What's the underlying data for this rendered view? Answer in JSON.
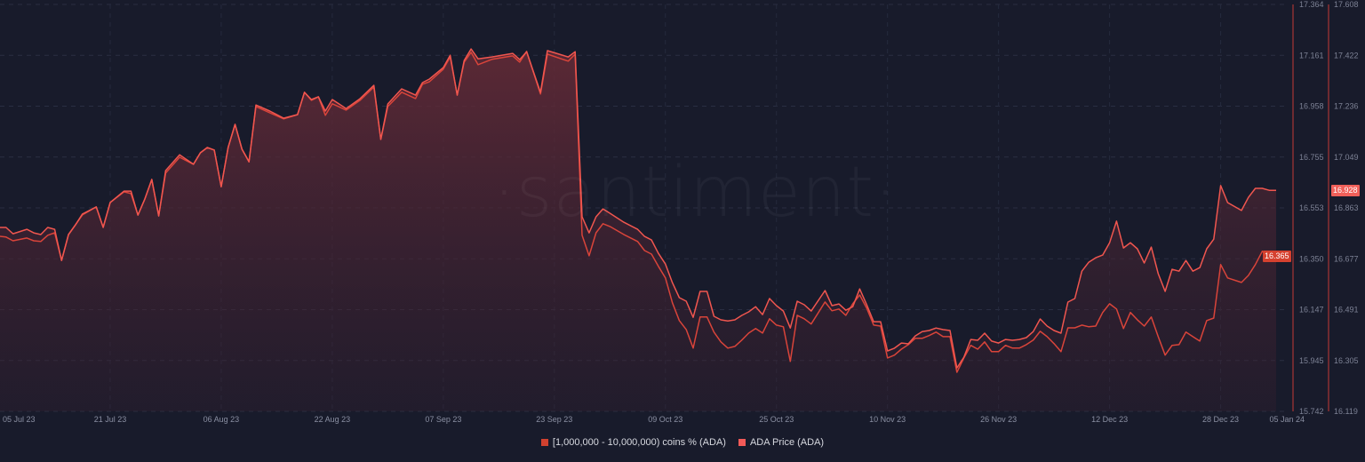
{
  "watermark": "·santiment·",
  "legend": [
    {
      "label": "[1,000,000 - 10,000,000) coins % (ADA)",
      "color": "#d0412f"
    },
    {
      "label": "ADA Price (ADA)",
      "color": "#f25a58"
    }
  ],
  "badges": {
    "coins_last": "16.365",
    "price_last": "16.928"
  },
  "chart_data": {
    "type": "line",
    "title": "",
    "x_tick_labels": [
      "05 Jul 23",
      "21 Jul 23",
      "06 Aug 23",
      "22 Aug 23",
      "07 Sep 23",
      "23 Sep 23",
      "09 Oct 23",
      "25 Oct 23",
      "10 Nov 23",
      "26 Nov 23",
      "12 Dec 23",
      "28 Dec 23",
      "05 Jan 24"
    ],
    "left_axis": {
      "ylim": [
        15.742,
        17.364
      ],
      "tick_labels": [
        "17.364",
        "17.161",
        "16.958",
        "16.755",
        "16.553",
        "16.350",
        "16.147",
        "15.945",
        "15.742"
      ]
    },
    "right_axis": {
      "ylim": [
        16.119,
        17.608
      ],
      "tick_labels": [
        "17.608",
        "17.422",
        "17.236",
        "17.049",
        "16.863",
        "16.677",
        "16.491",
        "16.305",
        "16.119"
      ]
    },
    "grid": true,
    "legend_position": "bottom",
    "x": [
      "2023-07-05",
      "2023-07-06",
      "2023-07-07",
      "2023-07-09",
      "2023-07-10",
      "2023-07-11",
      "2023-07-12",
      "2023-07-13",
      "2023-07-14",
      "2023-07-15",
      "2023-07-16",
      "2023-07-17",
      "2023-07-19",
      "2023-07-20",
      "2023-07-21",
      "2023-07-23",
      "2023-07-24",
      "2023-07-25",
      "2023-07-26",
      "2023-07-27",
      "2023-07-28",
      "2023-07-29",
      "2023-07-31",
      "2023-08-02",
      "2023-08-03",
      "2023-08-04",
      "2023-08-05",
      "2023-08-06",
      "2023-08-07",
      "2023-08-08",
      "2023-08-09",
      "2023-08-10",
      "2023-08-11",
      "2023-08-13",
      "2023-08-15",
      "2023-08-17",
      "2023-08-18",
      "2023-08-19",
      "2023-08-20",
      "2023-08-21",
      "2023-08-22",
      "2023-08-24",
      "2023-08-26",
      "2023-08-28",
      "2023-08-29",
      "2023-08-30",
      "2023-09-01",
      "2023-09-03",
      "2023-09-04",
      "2023-09-05",
      "2023-09-07",
      "2023-09-08",
      "2023-09-09",
      "2023-09-10",
      "2023-09-11",
      "2023-09-12",
      "2023-09-14",
      "2023-09-17",
      "2023-09-18",
      "2023-09-19",
      "2023-09-21",
      "2023-09-22",
      "2023-09-25",
      "2023-09-26",
      "2023-09-27",
      "2023-09-28",
      "2023-09-29",
      "2023-09-30",
      "2023-10-01",
      "2023-10-03",
      "2023-10-05",
      "2023-10-06",
      "2023-10-07",
      "2023-10-08",
      "2023-10-09",
      "2023-10-10",
      "2023-10-11",
      "2023-10-12",
      "2023-10-13",
      "2023-10-14",
      "2023-10-15",
      "2023-10-16",
      "2023-10-17",
      "2023-10-18",
      "2023-10-19",
      "2023-10-20",
      "2023-10-21",
      "2023-10-22",
      "2023-10-23",
      "2023-10-24",
      "2023-10-25",
      "2023-10-26",
      "2023-10-27",
      "2023-10-28",
      "2023-10-29",
      "2023-10-30",
      "2023-11-01",
      "2023-11-02",
      "2023-11-03",
      "2023-11-04",
      "2023-11-05",
      "2023-11-06",
      "2023-11-07",
      "2023-11-08",
      "2023-11-09",
      "2023-11-10",
      "2023-11-11",
      "2023-11-12",
      "2023-11-13",
      "2023-11-14",
      "2023-11-15",
      "2023-11-16",
      "2023-11-17",
      "2023-11-18",
      "2023-11-19",
      "2023-11-20",
      "2023-11-21",
      "2023-11-22",
      "2023-11-23",
      "2023-11-24",
      "2023-11-25",
      "2023-11-26",
      "2023-11-27",
      "2023-11-28",
      "2023-11-29",
      "2023-11-30",
      "2023-12-01",
      "2023-12-02",
      "2023-12-03",
      "2023-12-04",
      "2023-12-05",
      "2023-12-06",
      "2023-12-07",
      "2023-12-08",
      "2023-12-09",
      "2023-12-10",
      "2023-12-11",
      "2023-12-12",
      "2023-12-13",
      "2023-12-14",
      "2023-12-15",
      "2023-12-16",
      "2023-12-17",
      "2023-12-18",
      "2023-12-19",
      "2023-12-20",
      "2023-12-21",
      "2023-12-22",
      "2023-12-23",
      "2023-12-24",
      "2023-12-25",
      "2023-12-26",
      "2023-12-27",
      "2023-12-28",
      "2023-12-29",
      "2023-12-31",
      "2024-01-01",
      "2024-01-02",
      "2024-01-03",
      "2024-01-04",
      "2024-01-05"
    ],
    "series": [
      {
        "name": "[1,000,000 - 10,000,000) coins % (ADA)",
        "axis": "left",
        "color": "#d9443a",
        "values": [
          16.44,
          16.437,
          16.422,
          16.433,
          16.422,
          16.419,
          16.444,
          16.454,
          16.344,
          16.447,
          16.486,
          16.525,
          16.557,
          16.476,
          16.575,
          16.617,
          16.61,
          16.525,
          16.589,
          16.667,
          16.522,
          16.692,
          16.755,
          16.727,
          16.773,
          16.794,
          16.784,
          16.638,
          16.794,
          16.886,
          16.787,
          16.738,
          16.957,
          16.932,
          16.908,
          16.925,
          17.014,
          16.982,
          16.996,
          16.922,
          16.968,
          16.943,
          16.982,
          17.035,
          16.826,
          16.957,
          17.014,
          16.989,
          17.046,
          17.056,
          17.106,
          17.155,
          17.003,
          17.134,
          17.173,
          17.124,
          17.145,
          17.159,
          17.134,
          17.177,
          17.007,
          17.166,
          17.138,
          17.166,
          16.444,
          16.362,
          16.454,
          16.49,
          16.479,
          16.447,
          16.419,
          16.383,
          16.369,
          16.32,
          16.274,
          16.175,
          16.104,
          16.068,
          15.994,
          16.118,
          16.118,
          16.058,
          16.019,
          15.994,
          16.001,
          16.026,
          16.054,
          16.072,
          16.054,
          16.111,
          16.086,
          16.079,
          15.941,
          16.125,
          16.111,
          16.09,
          16.178,
          16.143,
          16.15,
          16.125,
          16.171,
          16.206,
          16.153,
          16.086,
          16.082,
          15.955,
          15.966,
          15.99,
          16.008,
          16.033,
          16.033,
          16.044,
          16.058,
          16.04,
          16.04,
          15.898,
          15.955,
          16.005,
          15.99,
          16.019,
          15.98,
          15.98,
          16.005,
          15.994,
          15.994,
          16.008,
          16.026,
          16.061,
          16.04,
          16.012,
          15.98,
          16.075,
          16.075,
          16.086,
          16.079,
          16.082,
          16.136,
          16.171,
          16.15,
          16.072,
          16.136,
          16.107,
          16.082,
          16.118,
          16.04,
          15.966,
          16.005,
          16.008,
          16.058,
          16.04,
          16.022,
          16.104,
          16.114,
          16.327,
          16.274,
          16.256,
          16.284,
          16.327,
          16.38,
          16.359,
          16.365
        ]
      },
      {
        "name": "ADA Price (ADA)",
        "axis": "right",
        "color": "#f0564f",
        "values": [
          16.792,
          16.792,
          16.769,
          16.785,
          16.772,
          16.766,
          16.792,
          16.785,
          16.671,
          16.766,
          16.801,
          16.841,
          16.867,
          16.792,
          16.883,
          16.925,
          16.925,
          16.837,
          16.896,
          16.967,
          16.834,
          17.0,
          17.058,
          17.023,
          17.065,
          17.084,
          17.075,
          16.941,
          17.084,
          17.169,
          17.078,
          17.032,
          17.24,
          17.218,
          17.192,
          17.205,
          17.286,
          17.26,
          17.27,
          17.218,
          17.26,
          17.227,
          17.263,
          17.312,
          17.114,
          17.244,
          17.299,
          17.276,
          17.322,
          17.335,
          17.377,
          17.422,
          17.276,
          17.403,
          17.445,
          17.409,
          17.416,
          17.429,
          17.406,
          17.435,
          17.286,
          17.439,
          17.416,
          17.435,
          16.831,
          16.772,
          16.831,
          16.86,
          16.844,
          16.811,
          16.785,
          16.759,
          16.746,
          16.697,
          16.658,
          16.59,
          16.535,
          16.522,
          16.463,
          16.558,
          16.558,
          16.467,
          16.454,
          16.45,
          16.454,
          16.47,
          16.483,
          16.502,
          16.473,
          16.532,
          16.506,
          16.486,
          16.424,
          16.522,
          16.509,
          16.486,
          16.561,
          16.506,
          16.512,
          16.489,
          16.502,
          16.567,
          16.509,
          16.447,
          16.447,
          16.34,
          16.35,
          16.369,
          16.366,
          16.395,
          16.411,
          16.415,
          16.424,
          16.418,
          16.415,
          16.278,
          16.317,
          16.382,
          16.379,
          16.405,
          16.376,
          16.369,
          16.382,
          16.379,
          16.382,
          16.389,
          16.411,
          16.457,
          16.431,
          16.415,
          16.405,
          16.519,
          16.532,
          16.632,
          16.665,
          16.681,
          16.691,
          16.736,
          16.815,
          16.717,
          16.736,
          16.714,
          16.662,
          16.72,
          16.623,
          16.558,
          16.639,
          16.632,
          16.671,
          16.632,
          16.645,
          16.714,
          16.749,
          16.945,
          16.883,
          16.854,
          16.902,
          16.935,
          16.935,
          16.928,
          16.928
        ]
      }
    ]
  }
}
